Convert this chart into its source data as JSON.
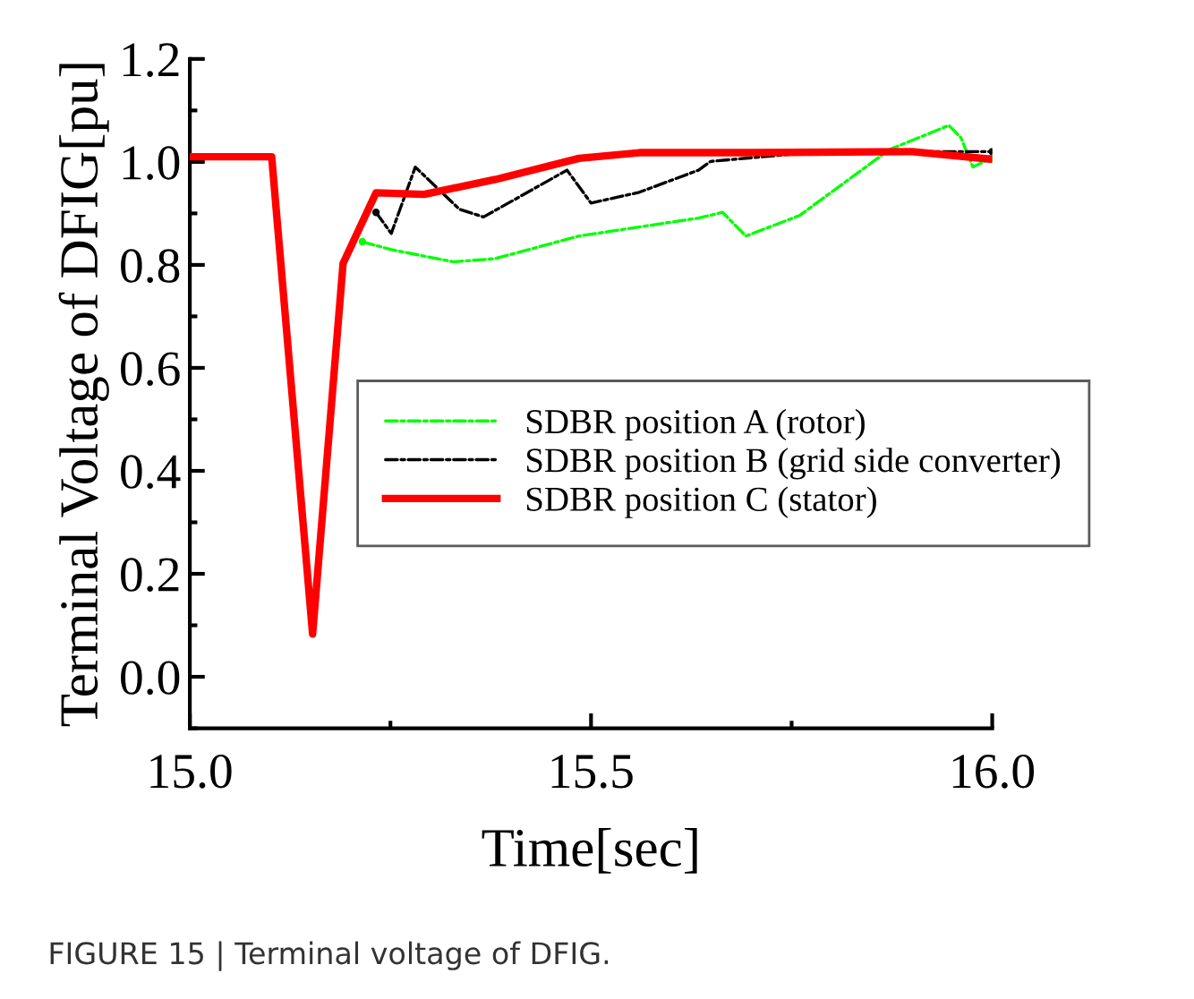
{
  "chart_data": {
    "type": "line",
    "xlabel": "Time[sec]",
    "ylabel": "Terminal Voltage of DFIG[pu]",
    "xlim": [
      15.0,
      16.0
    ],
    "xticks": [
      {
        "value": 15.0,
        "label": "15.0"
      },
      {
        "value": 15.5,
        "label": "15.5"
      },
      {
        "value": 16.0,
        "label": "16.0"
      }
    ],
    "ylim": [
      -0.1,
      1.2
    ],
    "yticks": [
      {
        "value": 0.0,
        "label": "0.0"
      },
      {
        "value": 0.2,
        "label": "0.2"
      },
      {
        "value": 0.4,
        "label": "0.4"
      },
      {
        "value": 0.6,
        "label": "0.6"
      },
      {
        "value": 0.8,
        "label": "0.8"
      },
      {
        "value": 1.0,
        "label": "1.0"
      },
      {
        "value": 1.2,
        "label": "1.2"
      }
    ],
    "grid": false,
    "legend": "center right",
    "annotations": [
      "FIGURE 15 | Terminal voltage of DFIG."
    ],
    "series": [
      {
        "name": "SDBR position A (rotor)",
        "color": "#00ff00",
        "line_style": "dashdot",
        "x": [
          15.215,
          15.25,
          15.328,
          15.38,
          15.485,
          15.634,
          15.664,
          15.693,
          15.76,
          15.872,
          15.946,
          15.961,
          15.976,
          15.998
        ],
        "values": [
          0.845,
          0.83,
          0.806,
          0.812,
          0.856,
          0.891,
          0.902,
          0.856,
          0.896,
          1.024,
          1.071,
          1.047,
          0.99,
          1.007
        ]
      },
      {
        "name": "SDBR position B (grid side converter)",
        "color": "#000000",
        "line_style": "dashdot",
        "x": [
          15.232,
          15.251,
          15.281,
          15.336,
          15.366,
          15.47,
          15.5,
          15.56,
          15.634,
          15.649,
          15.75,
          15.9,
          16.0
        ],
        "values": [
          0.902,
          0.861,
          0.99,
          0.908,
          0.893,
          0.984,
          0.92,
          0.941,
          0.984,
          1.001,
          1.015,
          1.02,
          1.02
        ]
      },
      {
        "name": "SDBR position C (stator)",
        "color": "#ff0000",
        "line_style": "solid",
        "x": [
          15.0,
          15.102,
          15.153,
          15.191,
          15.232,
          15.292,
          15.381,
          15.485,
          15.56,
          15.7,
          15.9,
          16.0
        ],
        "values": [
          1.01,
          1.01,
          0.083,
          0.803,
          0.94,
          0.937,
          0.966,
          1.007,
          1.018,
          1.018,
          1.02,
          1.005
        ]
      }
    ]
  }
}
